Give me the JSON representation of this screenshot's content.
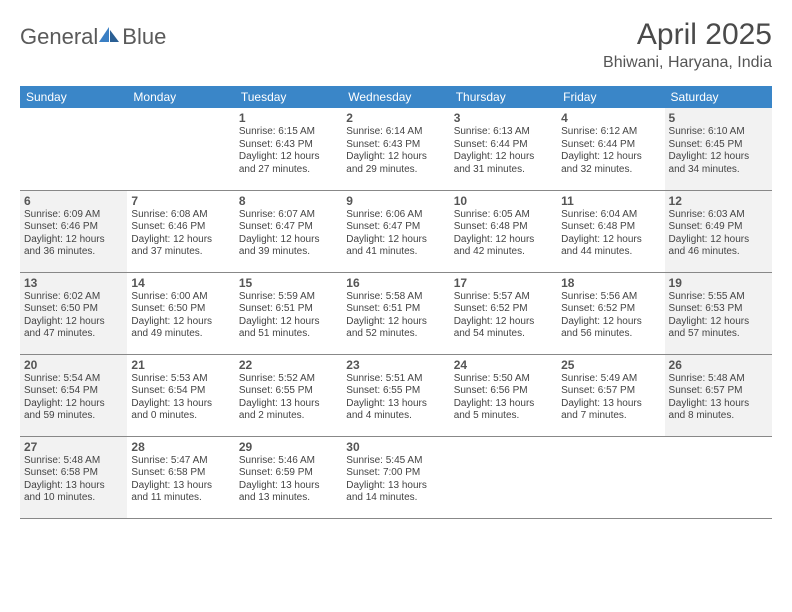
{
  "logo": {
    "text1": "General",
    "text2": "Blue"
  },
  "title": "April 2025",
  "location": "Bhiwani, Haryana, India",
  "colors": {
    "header_bg": "#3a86c8",
    "header_fg": "#ffffff",
    "weekend_bg": "#f2f2f2",
    "border": "#888888",
    "logo_gray": "#5a5a5a",
    "logo_blue": "#3a7fc4"
  },
  "weekdays": [
    "Sunday",
    "Monday",
    "Tuesday",
    "Wednesday",
    "Thursday",
    "Friday",
    "Saturday"
  ],
  "weeks": [
    [
      null,
      null,
      {
        "n": "1",
        "sr": "Sunrise: 6:15 AM",
        "ss": "Sunset: 6:43 PM",
        "d1": "Daylight: 12 hours",
        "d2": "and 27 minutes."
      },
      {
        "n": "2",
        "sr": "Sunrise: 6:14 AM",
        "ss": "Sunset: 6:43 PM",
        "d1": "Daylight: 12 hours",
        "d2": "and 29 minutes."
      },
      {
        "n": "3",
        "sr": "Sunrise: 6:13 AM",
        "ss": "Sunset: 6:44 PM",
        "d1": "Daylight: 12 hours",
        "d2": "and 31 minutes."
      },
      {
        "n": "4",
        "sr": "Sunrise: 6:12 AM",
        "ss": "Sunset: 6:44 PM",
        "d1": "Daylight: 12 hours",
        "d2": "and 32 minutes."
      },
      {
        "n": "5",
        "sr": "Sunrise: 6:10 AM",
        "ss": "Sunset: 6:45 PM",
        "d1": "Daylight: 12 hours",
        "d2": "and 34 minutes."
      }
    ],
    [
      {
        "n": "6",
        "sr": "Sunrise: 6:09 AM",
        "ss": "Sunset: 6:46 PM",
        "d1": "Daylight: 12 hours",
        "d2": "and 36 minutes."
      },
      {
        "n": "7",
        "sr": "Sunrise: 6:08 AM",
        "ss": "Sunset: 6:46 PM",
        "d1": "Daylight: 12 hours",
        "d2": "and 37 minutes."
      },
      {
        "n": "8",
        "sr": "Sunrise: 6:07 AM",
        "ss": "Sunset: 6:47 PM",
        "d1": "Daylight: 12 hours",
        "d2": "and 39 minutes."
      },
      {
        "n": "9",
        "sr": "Sunrise: 6:06 AM",
        "ss": "Sunset: 6:47 PM",
        "d1": "Daylight: 12 hours",
        "d2": "and 41 minutes."
      },
      {
        "n": "10",
        "sr": "Sunrise: 6:05 AM",
        "ss": "Sunset: 6:48 PM",
        "d1": "Daylight: 12 hours",
        "d2": "and 42 minutes."
      },
      {
        "n": "11",
        "sr": "Sunrise: 6:04 AM",
        "ss": "Sunset: 6:48 PM",
        "d1": "Daylight: 12 hours",
        "d2": "and 44 minutes."
      },
      {
        "n": "12",
        "sr": "Sunrise: 6:03 AM",
        "ss": "Sunset: 6:49 PM",
        "d1": "Daylight: 12 hours",
        "d2": "and 46 minutes."
      }
    ],
    [
      {
        "n": "13",
        "sr": "Sunrise: 6:02 AM",
        "ss": "Sunset: 6:50 PM",
        "d1": "Daylight: 12 hours",
        "d2": "and 47 minutes."
      },
      {
        "n": "14",
        "sr": "Sunrise: 6:00 AM",
        "ss": "Sunset: 6:50 PM",
        "d1": "Daylight: 12 hours",
        "d2": "and 49 minutes."
      },
      {
        "n": "15",
        "sr": "Sunrise: 5:59 AM",
        "ss": "Sunset: 6:51 PM",
        "d1": "Daylight: 12 hours",
        "d2": "and 51 minutes."
      },
      {
        "n": "16",
        "sr": "Sunrise: 5:58 AM",
        "ss": "Sunset: 6:51 PM",
        "d1": "Daylight: 12 hours",
        "d2": "and 52 minutes."
      },
      {
        "n": "17",
        "sr": "Sunrise: 5:57 AM",
        "ss": "Sunset: 6:52 PM",
        "d1": "Daylight: 12 hours",
        "d2": "and 54 minutes."
      },
      {
        "n": "18",
        "sr": "Sunrise: 5:56 AM",
        "ss": "Sunset: 6:52 PM",
        "d1": "Daylight: 12 hours",
        "d2": "and 56 minutes."
      },
      {
        "n": "19",
        "sr": "Sunrise: 5:55 AM",
        "ss": "Sunset: 6:53 PM",
        "d1": "Daylight: 12 hours",
        "d2": "and 57 minutes."
      }
    ],
    [
      {
        "n": "20",
        "sr": "Sunrise: 5:54 AM",
        "ss": "Sunset: 6:54 PM",
        "d1": "Daylight: 12 hours",
        "d2": "and 59 minutes."
      },
      {
        "n": "21",
        "sr": "Sunrise: 5:53 AM",
        "ss": "Sunset: 6:54 PM",
        "d1": "Daylight: 13 hours",
        "d2": "and 0 minutes."
      },
      {
        "n": "22",
        "sr": "Sunrise: 5:52 AM",
        "ss": "Sunset: 6:55 PM",
        "d1": "Daylight: 13 hours",
        "d2": "and 2 minutes."
      },
      {
        "n": "23",
        "sr": "Sunrise: 5:51 AM",
        "ss": "Sunset: 6:55 PM",
        "d1": "Daylight: 13 hours",
        "d2": "and 4 minutes."
      },
      {
        "n": "24",
        "sr": "Sunrise: 5:50 AM",
        "ss": "Sunset: 6:56 PM",
        "d1": "Daylight: 13 hours",
        "d2": "and 5 minutes."
      },
      {
        "n": "25",
        "sr": "Sunrise: 5:49 AM",
        "ss": "Sunset: 6:57 PM",
        "d1": "Daylight: 13 hours",
        "d2": "and 7 minutes."
      },
      {
        "n": "26",
        "sr": "Sunrise: 5:48 AM",
        "ss": "Sunset: 6:57 PM",
        "d1": "Daylight: 13 hours",
        "d2": "and 8 minutes."
      }
    ],
    [
      {
        "n": "27",
        "sr": "Sunrise: 5:48 AM",
        "ss": "Sunset: 6:58 PM",
        "d1": "Daylight: 13 hours",
        "d2": "and 10 minutes."
      },
      {
        "n": "28",
        "sr": "Sunrise: 5:47 AM",
        "ss": "Sunset: 6:58 PM",
        "d1": "Daylight: 13 hours",
        "d2": "and 11 minutes."
      },
      {
        "n": "29",
        "sr": "Sunrise: 5:46 AM",
        "ss": "Sunset: 6:59 PM",
        "d1": "Daylight: 13 hours",
        "d2": "and 13 minutes."
      },
      {
        "n": "30",
        "sr": "Sunrise: 5:45 AM",
        "ss": "Sunset: 7:00 PM",
        "d1": "Daylight: 13 hours",
        "d2": "and 14 minutes."
      },
      null,
      null,
      null
    ]
  ]
}
